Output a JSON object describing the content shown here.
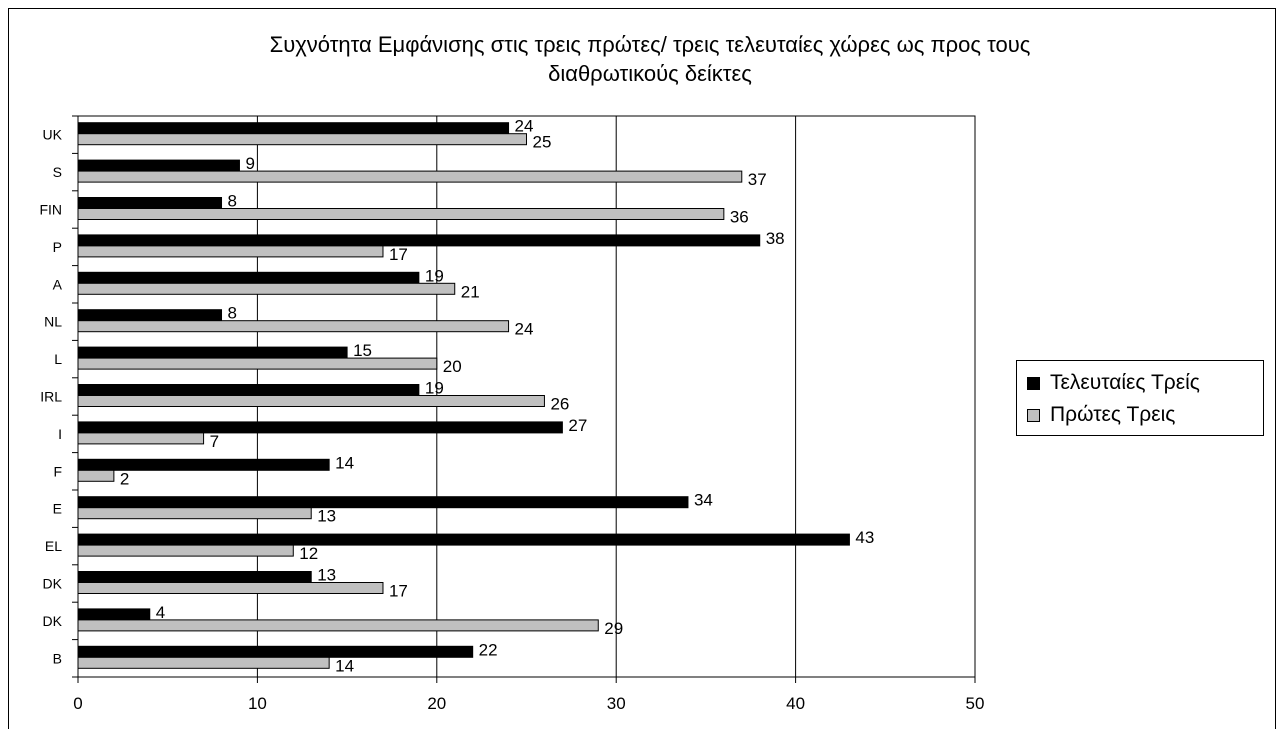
{
  "chart_data": {
    "type": "bar",
    "orientation": "horizontal",
    "title": "Συχνότητα Εμφάνισης στις τρεις πρώτες/ τρεις τελευταίες χώρες ως προς τους\nδιαθρωτικούς δείκτες",
    "categories": [
      "UK",
      "S",
      "FIN",
      "P",
      "A",
      "NL",
      "L",
      "IRL",
      "I",
      "F",
      "E",
      "EL",
      "DK",
      "DK",
      "B"
    ],
    "series": [
      {
        "name": "Τελευταίες Τρείς",
        "color": "#000000",
        "values": [
          24,
          9,
          8,
          38,
          19,
          8,
          15,
          19,
          27,
          14,
          34,
          43,
          13,
          4,
          22
        ]
      },
      {
        "name": "Πρώτες Τρεις",
        "color": "#c0c0c0",
        "values": [
          25,
          37,
          36,
          17,
          21,
          24,
          20,
          26,
          7,
          2,
          13,
          12,
          17,
          29,
          14
        ]
      }
    ],
    "xlim": [
      0,
      50
    ],
    "xticks": [
      "0",
      "10",
      "20",
      "30",
      "40",
      "50"
    ],
    "grid": "vertical",
    "legend_position": "right"
  }
}
